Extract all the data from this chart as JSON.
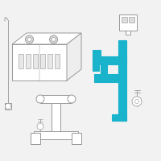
{
  "background_color": "#f2f2f2",
  "fig_width": 2.0,
  "fig_height": 2.0,
  "dpi": 100,
  "highlight_color": "#1ab3cc",
  "outline_color": "#999999",
  "line_width": 0.7
}
